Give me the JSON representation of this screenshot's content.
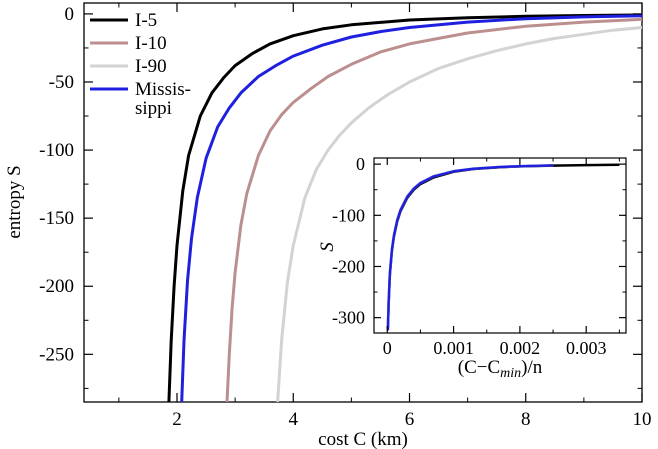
{
  "chart_data": [
    {
      "type": "line",
      "panel": "main",
      "xlabel": "cost C (km)",
      "ylabel": "entropy S",
      "xlim": [
        0.4,
        10
      ],
      "ylim": [
        -285,
        8
      ],
      "xticks": [
        {
          "value": 2,
          "label": "2"
        },
        {
          "value": 4,
          "label": "4"
        },
        {
          "value": 6,
          "label": "6"
        },
        {
          "value": 8,
          "label": "8"
        },
        {
          "value": 10,
          "label": "10"
        }
      ],
      "yticks": [
        {
          "value": 0,
          "label": "0"
        },
        {
          "value": -50,
          "label": "-50"
        },
        {
          "value": -100,
          "label": "-100"
        },
        {
          "value": -150,
          "label": "-150"
        },
        {
          "value": -200,
          "label": "-200"
        },
        {
          "value": -250,
          "label": "-250"
        }
      ],
      "legend": {
        "position": "top-left"
      },
      "series": [
        {
          "name": "I-5",
          "color": "#000000",
          "x": [
            1.86,
            1.9,
            1.95,
            2.0,
            2.1,
            2.2,
            2.4,
            2.6,
            2.8,
            3.0,
            3.3,
            3.6,
            4.0,
            4.5,
            5.0,
            6.0,
            7.0,
            8.0,
            9.0,
            10.0
          ],
          "y": [
            -285,
            -240,
            -200,
            -170,
            -130,
            -104,
            -75,
            -58,
            -47,
            -38,
            -29,
            -22,
            -16,
            -11,
            -8,
            -4.5,
            -2.8,
            -1.8,
            -1.2,
            -0.8
          ]
        },
        {
          "name": "I-10",
          "color": "#bc8f8f",
          "x": [
            2.86,
            2.9,
            2.95,
            3.0,
            3.1,
            3.2,
            3.4,
            3.6,
            3.8,
            4.0,
            4.3,
            4.6,
            5.0,
            5.5,
            6.0,
            6.5,
            7.0,
            8.0,
            9.0,
            10.0
          ],
          "y": [
            -285,
            -250,
            -215,
            -190,
            -155,
            -132,
            -104,
            -86,
            -74,
            -65,
            -55,
            -46,
            -37,
            -28,
            -22,
            -18,
            -14,
            -9,
            -6,
            -4
          ]
        },
        {
          "name": "I-90",
          "color": "#d3d3d3",
          "x": [
            3.73,
            3.8,
            3.9,
            4.0,
            4.2,
            4.4,
            4.6,
            4.8,
            5.0,
            5.3,
            5.6,
            6.0,
            6.5,
            7.0,
            7.5,
            8.0,
            8.5,
            9.0,
            9.5,
            10.0
          ],
          "y": [
            -285,
            -240,
            -197,
            -170,
            -135,
            -114,
            -100,
            -89,
            -80,
            -69,
            -60,
            -50,
            -40,
            -33,
            -27,
            -22,
            -18,
            -15,
            -12,
            -10
          ]
        },
        {
          "name": "Missis-sippi",
          "legend_lines": [
            "Missis-",
            "sippi"
          ],
          "color": "#1f1fe0",
          "x": [
            2.08,
            2.12,
            2.18,
            2.25,
            2.35,
            2.5,
            2.7,
            2.9,
            3.1,
            3.4,
            3.7,
            4.0,
            4.5,
            5.0,
            5.5,
            6.0,
            7.0,
            8.0,
            9.0,
            10.0
          ],
          "y": [
            -285,
            -240,
            -196,
            -165,
            -135,
            -106,
            -83,
            -69,
            -58,
            -46,
            -38,
            -31,
            -23,
            -17,
            -13,
            -10,
            -6,
            -3.5,
            -2.2,
            -1.3
          ]
        }
      ]
    },
    {
      "type": "line",
      "panel": "inset",
      "xlabel": "(C−Cmin)/n",
      "xlabel_base": "(C−C",
      "xlabel_sub": "min",
      "xlabel_tail": ")/n",
      "ylabel": "S",
      "xlim": [
        -0.0002,
        0.0036
      ],
      "ylim": [
        -330,
        12
      ],
      "xticks": [
        {
          "value": 0,
          "label": "0"
        },
        {
          "value": 0.001,
          "label": "0.001"
        },
        {
          "value": 0.002,
          "label": "0.002"
        },
        {
          "value": 0.003,
          "label": "0.003"
        }
      ],
      "yticks": [
        {
          "value": 0,
          "label": "0"
        },
        {
          "value": -100,
          "label": "-100"
        },
        {
          "value": -200,
          "label": "-200"
        },
        {
          "value": -300,
          "label": "-300"
        }
      ],
      "series": [
        {
          "name": "I-5",
          "color": "#000000",
          "x": [
            1e-05,
            2e-05,
            4e-05,
            7e-05,
            0.0001,
            0.00015,
            0.0002,
            0.0003,
            0.0004,
            0.0005,
            0.0007,
            0.001,
            0.0013,
            0.0017,
            0.002,
            0.0025,
            0.003,
            0.0035
          ],
          "y": [
            -320,
            -275,
            -215,
            -170,
            -142,
            -112,
            -92,
            -66,
            -50,
            -39,
            -26,
            -15,
            -9.5,
            -6,
            -4.5,
            -2.8,
            -1.8,
            -1.2
          ]
        },
        {
          "name": "I-10",
          "color": "#bc8f8f",
          "x": [
            1e-05,
            2e-05,
            4e-05,
            7e-05,
            0.0001,
            0.00015,
            0.0002,
            0.0003,
            0.0004,
            0.0005,
            0.0007,
            0.001,
            0.0013,
            0.0017,
            0.002,
            0.0025
          ],
          "y": [
            -318,
            -270,
            -212,
            -168,
            -140,
            -110,
            -90,
            -64,
            -48,
            -37,
            -24,
            -14,
            -9,
            -5.5,
            -4,
            -2.5
          ]
        },
        {
          "name": "I-90",
          "color": "#d3d3d3",
          "x": [
            1e-05,
            2e-05,
            4e-05,
            7e-05,
            0.0001,
            0.00015,
            0.0002,
            0.0003,
            0.0004,
            0.0005,
            0.0007,
            0.001,
            0.0013,
            0.0017,
            0.002
          ],
          "y": [
            -316,
            -268,
            -210,
            -166,
            -138,
            -108,
            -88,
            -62,
            -47,
            -36,
            -23,
            -13.5,
            -8.5,
            -5.2,
            -3.8
          ]
        },
        {
          "name": "Missis-sippi",
          "color": "#1f1fe0",
          "x": [
            1e-05,
            2e-05,
            4e-05,
            7e-05,
            0.0001,
            0.00015,
            0.0002,
            0.0003,
            0.0004,
            0.0005,
            0.0007,
            0.001,
            0.0013,
            0.0017,
            0.002,
            0.0025
          ],
          "y": [
            -325,
            -272,
            -213,
            -168,
            -140,
            -110,
            -90,
            -64,
            -48,
            -37,
            -24,
            -14,
            -9,
            -5.5,
            -4,
            -2.5
          ]
        }
      ]
    }
  ]
}
